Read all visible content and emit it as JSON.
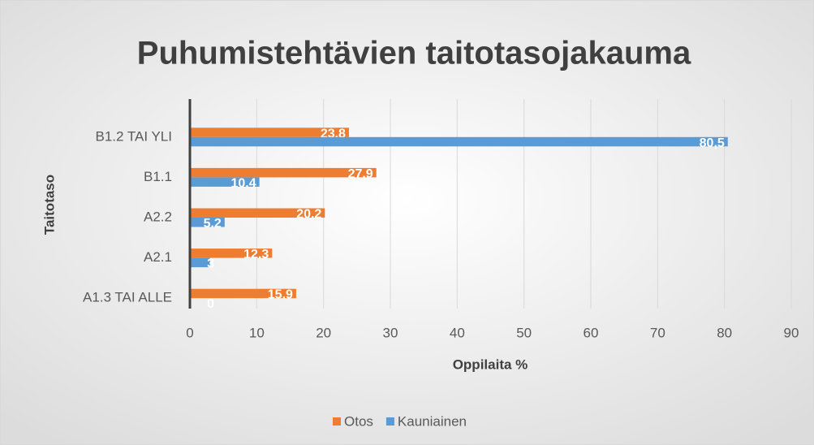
{
  "chart_data": {
    "type": "bar",
    "orientation": "horizontal",
    "title": "Puhumistehtävien taitotasojakauma",
    "x_label": "Oppilaita %",
    "y_label": "Taitotaso",
    "categories": [
      "B1.2 TAI YLI",
      "B1.1",
      "A2.2",
      "A2.1",
      "A1.3 TAI ALLE"
    ],
    "series": [
      {
        "name": "Otos",
        "color": "#ed7d31",
        "values": [
          23.8,
          27.9,
          20.2,
          12.3,
          15.9
        ],
        "value_labels": [
          "23,8",
          "27.9",
          "20.2",
          "12.3",
          "15.9"
        ]
      },
      {
        "name": "Kauniainen",
        "color": "#5b9bd5",
        "values": [
          80.5,
          10.4,
          5.2,
          3,
          0
        ],
        "value_labels": [
          "80,5",
          "10.4",
          "5.2",
          "3",
          "0"
        ]
      }
    ],
    "xlim": [
      0,
      90
    ],
    "xticks": [
      0,
      10,
      20,
      30,
      40,
      50,
      60,
      70,
      80,
      90
    ],
    "grid": true,
    "legend": "bottom"
  }
}
